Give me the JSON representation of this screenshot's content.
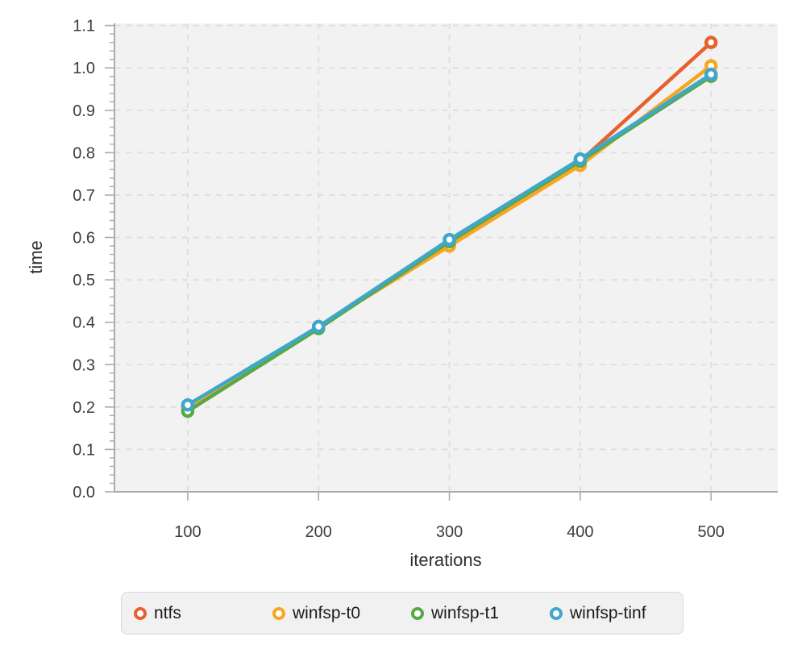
{
  "chart_data": {
    "type": "line",
    "title": "",
    "xlabel": "iterations",
    "ylabel": "time",
    "x": [
      100,
      200,
      300,
      400,
      500
    ],
    "series": [
      {
        "name": "ntfs",
        "color": "#e7612e",
        "values": [
          0.2,
          0.39,
          0.58,
          0.78,
          1.06
        ]
      },
      {
        "name": "winfsp-t0",
        "color": "#f6a623",
        "values": [
          0.2,
          0.39,
          0.58,
          0.77,
          1.005
        ]
      },
      {
        "name": "winfsp-t1",
        "color": "#57a946",
        "values": [
          0.19,
          0.385,
          0.59,
          0.78,
          0.98
        ]
      },
      {
        "name": "winfsp-tinf",
        "color": "#3fa7ca",
        "values": [
          0.205,
          0.39,
          0.595,
          0.785,
          0.985
        ]
      }
    ],
    "x_ticks": [
      100,
      200,
      300,
      400,
      500
    ],
    "y_ticks": [
      0.0,
      0.1,
      0.2,
      0.3,
      0.4,
      0.5,
      0.6,
      0.7,
      0.8,
      0.9,
      1.0,
      1.1
    ],
    "y_minor_step": 0.02,
    "x_range": [
      44,
      551
    ],
    "y_range": [
      0,
      1.105
    ],
    "grid": "dashed",
    "marker": "open-circle",
    "legend_position": "bottom",
    "style": {
      "plot_bg": "#f2f2f2",
      "grid_color": "#dfdfdf",
      "axis_color": "#ababab",
      "tick_label_color": "#3d3d3d",
      "title_color": "#2f2f2f",
      "line_width": 4.5,
      "marker_radius": 6,
      "marker_stroke": 4.5
    }
  }
}
